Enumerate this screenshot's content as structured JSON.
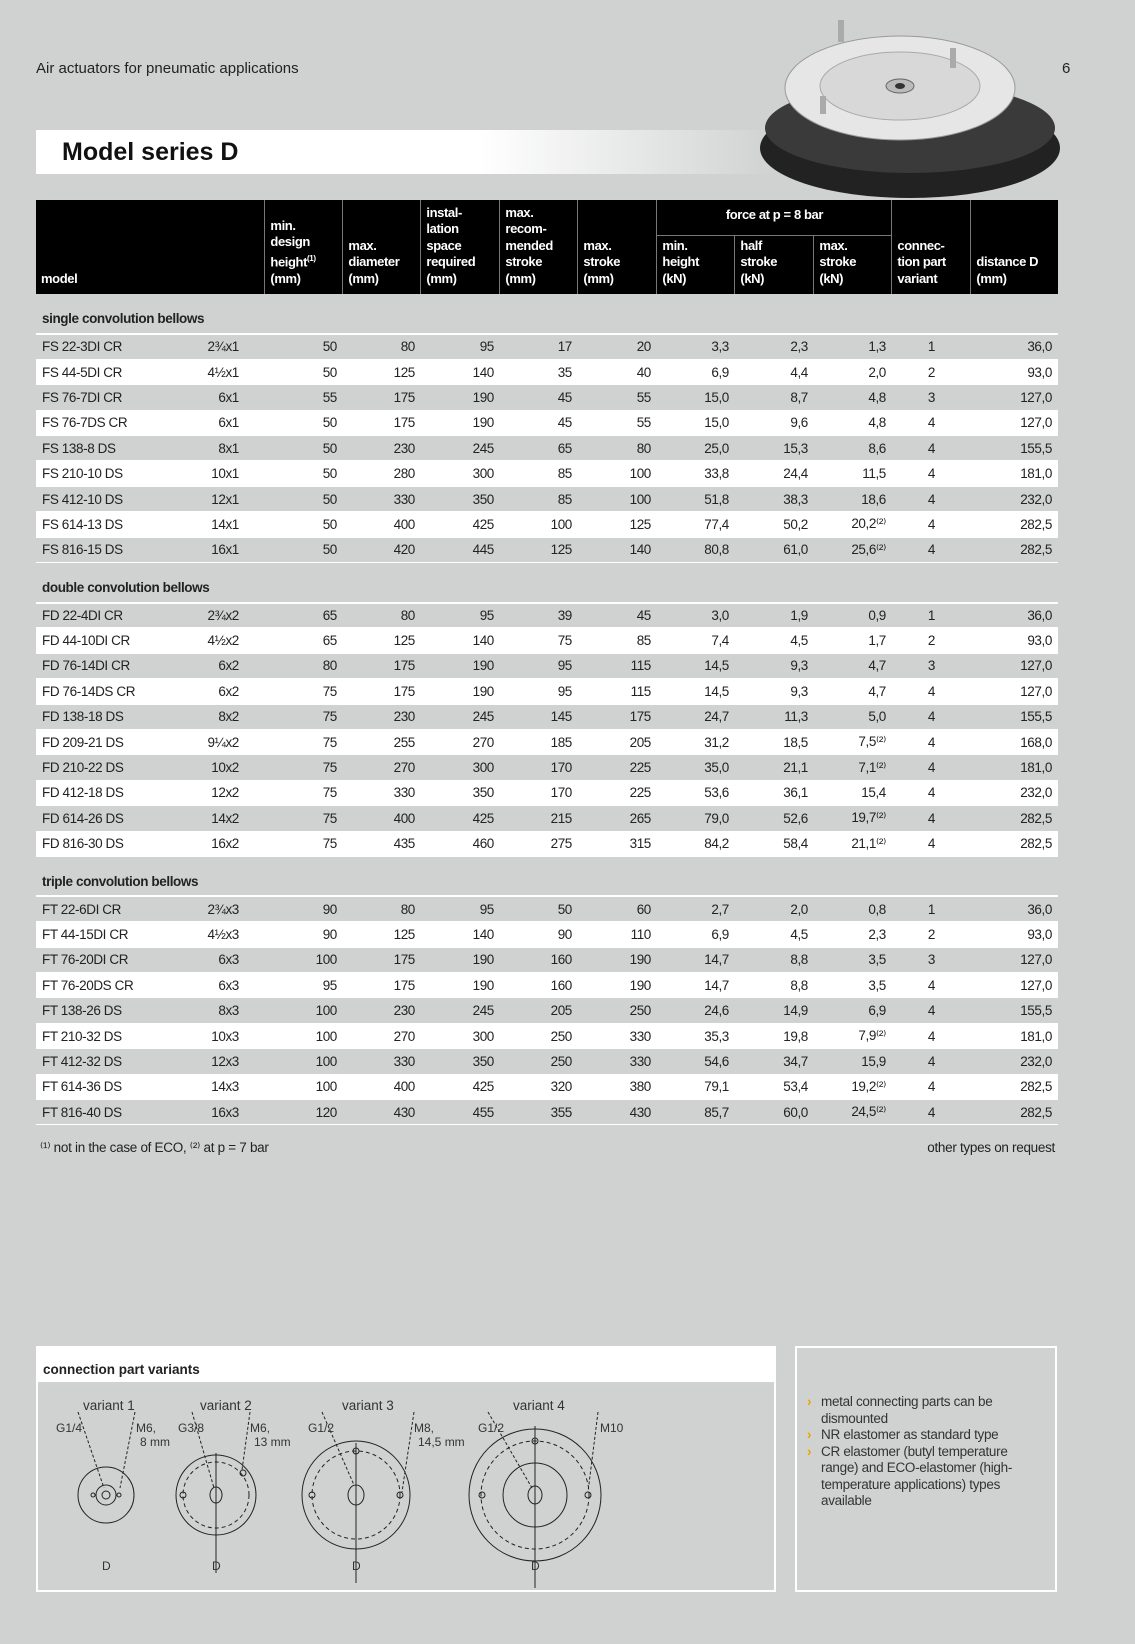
{
  "header": {
    "subtitle": "Air actuators for pneumatic applications",
    "page": "6",
    "title": "Model series D"
  },
  "table": {
    "cols": [
      "model",
      "min. design height⁽¹⁾ (mm)",
      "max. diameter (mm)",
      "instal-lation space required (mm)",
      "max. recom-mended stroke (mm)",
      "max. stroke (mm)",
      "force at p = 8 bar",
      "min. height (kN)",
      "half stroke (kN)",
      "max. stroke (kN)",
      "connec-tion part variant",
      "distance D (mm)"
    ],
    "sections": [
      {
        "title": "single convolution bellows",
        "rows": [
          [
            "FS 22-3DI CR",
            "2¾x1",
            "50",
            "80",
            "95",
            "17",
            "20",
            "3,3",
            "2,3",
            "1,3",
            "1",
            "36,0"
          ],
          [
            "FS 44-5DI CR",
            "4½x1",
            "50",
            "125",
            "140",
            "35",
            "40",
            "6,9",
            "4,4",
            "2,0",
            "2",
            "93,0"
          ],
          [
            "FS 76-7DI CR",
            "6x1",
            "55",
            "175",
            "190",
            "45",
            "55",
            "15,0",
            "8,7",
            "4,8",
            "3",
            "127,0"
          ],
          [
            "FS 76-7DS CR",
            "6x1",
            "50",
            "175",
            "190",
            "45",
            "55",
            "15,0",
            "9,6",
            "4,8",
            "4",
            "127,0"
          ],
          [
            "FS 138-8 DS",
            "8x1",
            "50",
            "230",
            "245",
            "65",
            "80",
            "25,0",
            "15,3",
            "8,6",
            "4",
            "155,5"
          ],
          [
            "FS 210-10 DS",
            "10x1",
            "50",
            "280",
            "300",
            "85",
            "100",
            "33,8",
            "24,4",
            "11,5",
            "4",
            "181,0"
          ],
          [
            "FS 412-10 DS",
            "12x1",
            "50",
            "330",
            "350",
            "85",
            "100",
            "51,8",
            "38,3",
            "18,6",
            "4",
            "232,0"
          ],
          [
            "FS 614-13 DS",
            "14x1",
            "50",
            "400",
            "425",
            "100",
            "125",
            "77,4",
            "50,2",
            "20,2⁽²⁾",
            "4",
            "282,5"
          ],
          [
            "FS 816-15 DS",
            "16x1",
            "50",
            "420",
            "445",
            "125",
            "140",
            "80,8",
            "61,0",
            "25,6⁽²⁾",
            "4",
            "282,5"
          ]
        ]
      },
      {
        "title": "double convolution bellows",
        "rows": [
          [
            "FD 22-4DI CR",
            "2¾x2",
            "65",
            "80",
            "95",
            "39",
            "45",
            "3,0",
            "1,9",
            "0,9",
            "1",
            "36,0"
          ],
          [
            "FD 44-10DI CR",
            "4½x2",
            "65",
            "125",
            "140",
            "75",
            "85",
            "7,4",
            "4,5",
            "1,7",
            "2",
            "93,0"
          ],
          [
            "FD 76-14DI CR",
            "6x2",
            "80",
            "175",
            "190",
            "95",
            "115",
            "14,5",
            "9,3",
            "4,7",
            "3",
            "127,0"
          ],
          [
            "FD 76-14DS CR",
            "6x2",
            "75",
            "175",
            "190",
            "95",
            "115",
            "14,5",
            "9,3",
            "4,7",
            "4",
            "127,0"
          ],
          [
            "FD 138-18 DS",
            "8x2",
            "75",
            "230",
            "245",
            "145",
            "175",
            "24,7",
            "11,3",
            "5,0",
            "4",
            "155,5"
          ],
          [
            "FD 209-21 DS",
            "9¼x2",
            "75",
            "255",
            "270",
            "185",
            "205",
            "31,2",
            "18,5",
            "7,5⁽²⁾",
            "4",
            "168,0"
          ],
          [
            "FD 210-22 DS",
            "10x2",
            "75",
            "270",
            "300",
            "170",
            "225",
            "35,0",
            "21,1",
            "7,1⁽²⁾",
            "4",
            "181,0"
          ],
          [
            "FD 412-18 DS",
            "12x2",
            "75",
            "330",
            "350",
            "170",
            "225",
            "53,6",
            "36,1",
            "15,4",
            "4",
            "232,0"
          ],
          [
            "FD 614-26 DS",
            "14x2",
            "75",
            "400",
            "425",
            "215",
            "265",
            "79,0",
            "52,6",
            "19,7⁽²⁾",
            "4",
            "282,5"
          ],
          [
            "FD 816-30 DS",
            "16x2",
            "75",
            "435",
            "460",
            "275",
            "315",
            "84,2",
            "58,4",
            "21,1⁽²⁾",
            "4",
            "282,5"
          ]
        ]
      },
      {
        "title": "triple convolution bellows",
        "rows": [
          [
            "FT 22-6DI CR",
            "2¾x3",
            "90",
            "80",
            "95",
            "50",
            "60",
            "2,7",
            "2,0",
            "0,8",
            "1",
            "36,0"
          ],
          [
            "FT 44-15DI CR",
            "4½x3",
            "90",
            "125",
            "140",
            "90",
            "110",
            "6,9",
            "4,5",
            "2,3",
            "2",
            "93,0"
          ],
          [
            "FT 76-20DI CR",
            "6x3",
            "100",
            "175",
            "190",
            "160",
            "190",
            "14,7",
            "8,8",
            "3,5",
            "3",
            "127,0"
          ],
          [
            "FT 76-20DS CR",
            "6x3",
            "95",
            "175",
            "190",
            "160",
            "190",
            "14,7",
            "8,8",
            "3,5",
            "4",
            "127,0"
          ],
          [
            "FT 138-26 DS",
            "8x3",
            "100",
            "230",
            "245",
            "205",
            "250",
            "24,6",
            "14,9",
            "6,9",
            "4",
            "155,5"
          ],
          [
            "FT 210-32 DS",
            "10x3",
            "100",
            "270",
            "300",
            "250",
            "330",
            "35,3",
            "19,8",
            "7,9⁽²⁾",
            "4",
            "181,0"
          ],
          [
            "FT 412-32 DS",
            "12x3",
            "100",
            "330",
            "350",
            "250",
            "330",
            "54,6",
            "34,7",
            "15,9",
            "4",
            "232,0"
          ],
          [
            "FT 614-36 DS",
            "14x3",
            "100",
            "400",
            "425",
            "320",
            "380",
            "79,1",
            "53,4",
            "19,2⁽²⁾",
            "4",
            "282,5"
          ],
          [
            "FT 816-40 DS",
            "16x3",
            "120",
            "430",
            "455",
            "355",
            "430",
            "85,7",
            "60,0",
            "24,5⁽²⁾",
            "4",
            "282,5"
          ]
        ]
      }
    ]
  },
  "footnote": {
    "left": "⁽¹⁾ not in the case of ECO, ⁽²⁾ at p = 7 bar",
    "right": "other types on request"
  },
  "variants": {
    "title": "connection part variants",
    "labels": [
      "variant 1",
      "variant 2",
      "variant 3",
      "variant 4"
    ],
    "callouts": [
      [
        "G1/4",
        "M6,",
        "8 mm"
      ],
      [
        "G3/8",
        "M6,",
        "13 mm"
      ],
      [
        "G1/2",
        "M8,",
        "14,5 mm"
      ],
      [
        "G1/2",
        "M10",
        ""
      ]
    ],
    "dim": "D"
  },
  "notes": [
    "metal connecting parts can be dismounted",
    "NR elastomer as standard type",
    "CR elastomer (butyl temperature range) and ECO-elastomer (high-temperature applications) types available"
  ],
  "colors": {
    "accent": "#f0a000",
    "header_bg": "#000000",
    "page_bg": "#d0d2d1"
  }
}
